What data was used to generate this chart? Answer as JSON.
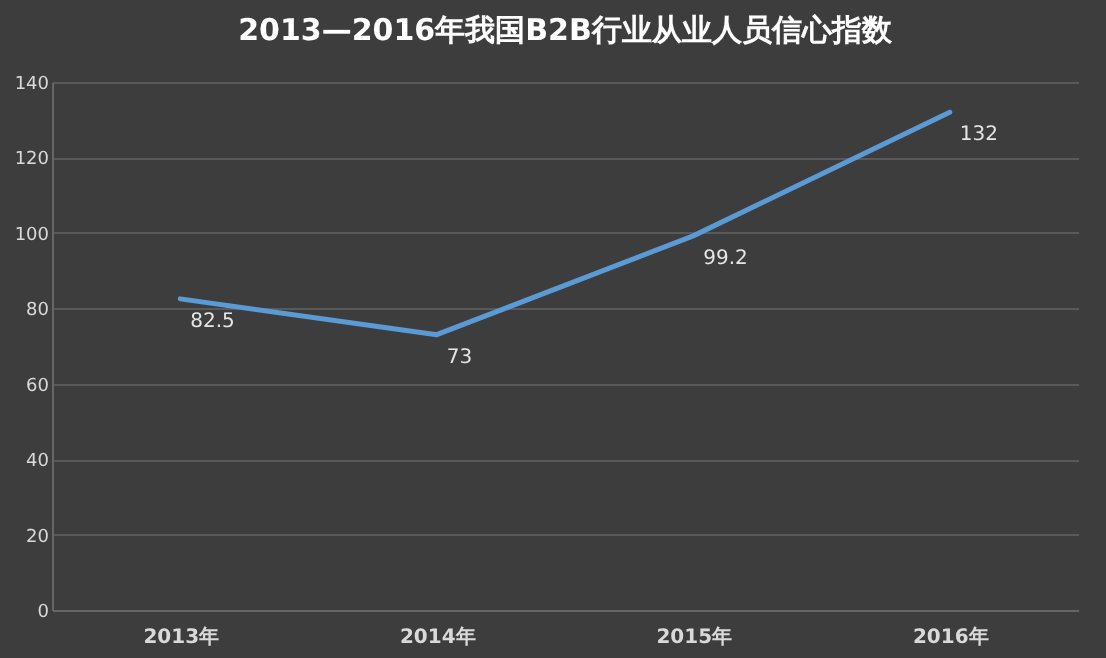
{
  "chart_data": {
    "type": "line",
    "title": "2013—2016年我国B2B行业从业人员信心指数",
    "categories": [
      "2013年",
      "2014年",
      "2015年",
      "2016年"
    ],
    "series": [
      {
        "color": "#5b9bd5",
        "values": [
          82.5,
          73,
          99.2,
          132
        ]
      }
    ],
    "ylim": [
      0,
      140
    ],
    "yticks": [
      0,
      20,
      40,
      60,
      80,
      100,
      120,
      140
    ],
    "grid": "y",
    "data_labels": true
  }
}
